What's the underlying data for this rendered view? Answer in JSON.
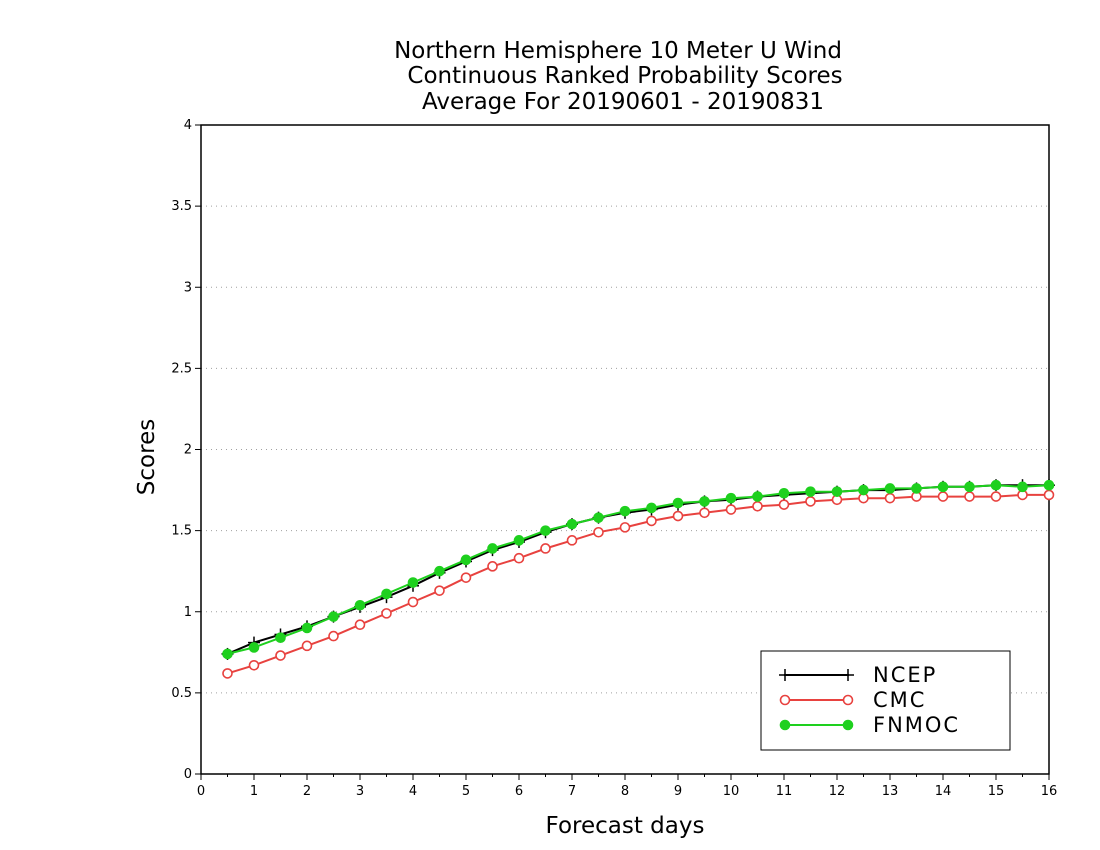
{
  "chart_data": {
    "type": "line",
    "title": [
      "Northern Hemisphere 10 Meter U Wind",
      "Continuous Ranked Probability Scores",
      "Average For 20190601 - 20190831"
    ],
    "xlabel": "Forecast days",
    "ylabel": "Scores",
    "xlim": [
      0,
      16
    ],
    "ylim": [
      0,
      4
    ],
    "xticks": [
      "0",
      "1",
      "2",
      "3",
      "4",
      "5",
      "6",
      "7",
      "8",
      "9",
      "10",
      "11",
      "12",
      "13",
      "14",
      "15",
      "16"
    ],
    "yticks": [
      "0",
      "0.5",
      "1",
      "1.5",
      "2",
      "2.5",
      "3",
      "3.5",
      "4"
    ],
    "grid": "horizontal dotted",
    "legend_position": "bottom-right",
    "x": [
      0.5,
      1,
      1.5,
      2,
      2.5,
      3,
      3.5,
      4,
      4.5,
      5,
      5.5,
      6,
      6.5,
      7,
      7.5,
      8,
      8.5,
      9,
      9.5,
      10,
      10.5,
      11,
      11.5,
      12,
      12.5,
      13,
      13.5,
      14,
      14.5,
      15,
      15.5,
      16
    ],
    "series": [
      {
        "name": "NCEP",
        "color": "#000000",
        "marker": "plus",
        "values": [
          0.74,
          0.81,
          0.86,
          0.91,
          0.97,
          1.03,
          1.09,
          1.16,
          1.24,
          1.31,
          1.38,
          1.43,
          1.49,
          1.54,
          1.58,
          1.61,
          1.63,
          1.66,
          1.68,
          1.69,
          1.71,
          1.72,
          1.73,
          1.74,
          1.75,
          1.75,
          1.76,
          1.77,
          1.77,
          1.78,
          1.78,
          1.78
        ]
      },
      {
        "name": "CMC",
        "color": "#e8423f",
        "marker": "open-circle",
        "values": [
          0.62,
          0.67,
          0.73,
          0.79,
          0.85,
          0.92,
          0.99,
          1.06,
          1.13,
          1.21,
          1.28,
          1.33,
          1.39,
          1.44,
          1.49,
          1.52,
          1.56,
          1.59,
          1.61,
          1.63,
          1.65,
          1.66,
          1.68,
          1.69,
          1.7,
          1.7,
          1.71,
          1.71,
          1.71,
          1.71,
          1.72,
          1.72
        ]
      },
      {
        "name": "FNMOC",
        "color": "#1ed01e",
        "marker": "filled-circle",
        "values": [
          0.74,
          0.78,
          0.84,
          0.9,
          0.97,
          1.04,
          1.11,
          1.18,
          1.25,
          1.32,
          1.39,
          1.44,
          1.5,
          1.54,
          1.58,
          1.62,
          1.64,
          1.67,
          1.68,
          1.7,
          1.71,
          1.73,
          1.74,
          1.74,
          1.75,
          1.76,
          1.76,
          1.77,
          1.77,
          1.78,
          1.77,
          1.78
        ]
      }
    ]
  }
}
